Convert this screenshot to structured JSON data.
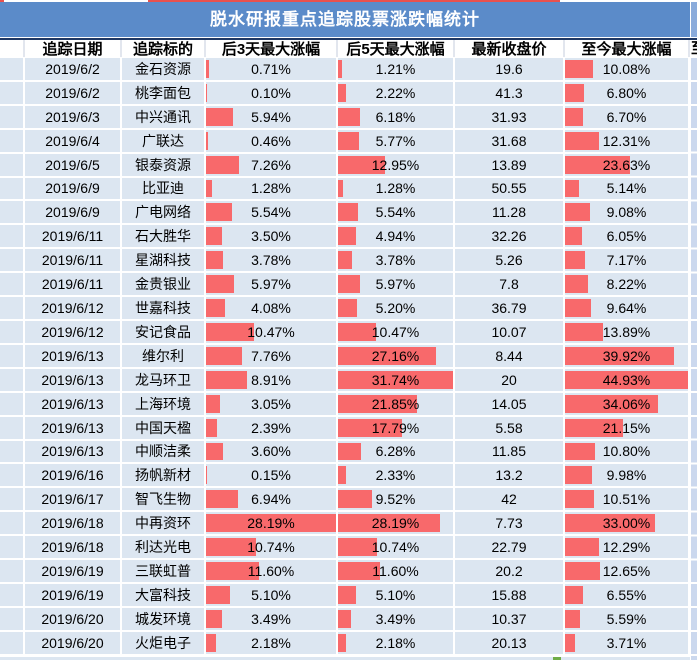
{
  "table": {
    "title": "脱水研报重点追踪股票涨跌幅统计",
    "columns": [
      "追踪日期",
      "追踪标的",
      "后3天最大涨幅",
      "后5天最大涨幅",
      "最新收盘价",
      "至今最大涨幅"
    ],
    "partial_next_column_char": "至",
    "rows": [
      {
        "date": "2019/6/2",
        "name": "金石资源",
        "d3": "0.71%",
        "d5": "1.21%",
        "close": "19.6",
        "total": "10.08%"
      },
      {
        "date": "2019/6/2",
        "name": "桃李面包",
        "d3": "0.10%",
        "d5": "2.22%",
        "close": "41.3",
        "total": "6.80%"
      },
      {
        "date": "2019/6/3",
        "name": "中兴通讯",
        "d3": "5.94%",
        "d5": "6.18%",
        "close": "31.93",
        "total": "6.70%"
      },
      {
        "date": "2019/6/4",
        "name": "广联达",
        "d3": "0.46%",
        "d5": "5.77%",
        "close": "31.68",
        "total": "12.31%"
      },
      {
        "date": "2019/6/5",
        "name": "银泰资源",
        "d3": "7.26%",
        "d5": "12.95%",
        "close": "13.89",
        "total": "23.63%"
      },
      {
        "date": "2019/6/9",
        "name": "比亚迪",
        "d3": "1.28%",
        "d5": "1.28%",
        "close": "50.55",
        "total": "5.14%"
      },
      {
        "date": "2019/6/9",
        "name": "广电网络",
        "d3": "5.54%",
        "d5": "5.54%",
        "close": "11.28",
        "total": "9.08%"
      },
      {
        "date": "2019/6/11",
        "name": "石大胜华",
        "d3": "3.50%",
        "d5": "4.94%",
        "close": "32.26",
        "total": "6.05%"
      },
      {
        "date": "2019/6/11",
        "name": "星湖科技",
        "d3": "3.78%",
        "d5": "3.78%",
        "close": "5.26",
        "total": "7.17%"
      },
      {
        "date": "2019/6/11",
        "name": "金贵银业",
        "d3": "5.97%",
        "d5": "5.97%",
        "close": "7.8",
        "total": "8.22%"
      },
      {
        "date": "2019/6/12",
        "name": "世嘉科技",
        "d3": "4.08%",
        "d5": "5.20%",
        "close": "36.79",
        "total": "9.64%"
      },
      {
        "date": "2019/6/12",
        "name": "安记食品",
        "d3": "10.47%",
        "d5": "10.47%",
        "close": "10.07",
        "total": "13.89%"
      },
      {
        "date": "2019/6/13",
        "name": "维尔利",
        "d3": "7.76%",
        "d5": "27.16%",
        "close": "8.44",
        "total": "39.92%"
      },
      {
        "date": "2019/6/13",
        "name": "龙马环卫",
        "d3": "8.91%",
        "d5": "31.74%",
        "close": "20",
        "total": "44.93%"
      },
      {
        "date": "2019/6/13",
        "name": "上海环境",
        "d3": "3.05%",
        "d5": "21.85%",
        "close": "14.05",
        "total": "34.06%"
      },
      {
        "date": "2019/6/13",
        "name": "中国天楹",
        "d3": "2.39%",
        "d5": "17.79%",
        "close": "5.58",
        "total": "21.15%"
      },
      {
        "date": "2019/6/13",
        "name": "中顺洁柔",
        "d3": "3.60%",
        "d5": "6.28%",
        "close": "11.85",
        "total": "10.80%"
      },
      {
        "date": "2019/6/16",
        "name": "扬帆新材",
        "d3": "0.15%",
        "d5": "2.33%",
        "close": "13.2",
        "total": "9.98%"
      },
      {
        "date": "2019/6/17",
        "name": "智飞生物",
        "d3": "6.94%",
        "d5": "9.52%",
        "close": "42",
        "total": "10.51%"
      },
      {
        "date": "2019/6/18",
        "name": "中再资环",
        "d3": "28.19%",
        "d5": "28.19%",
        "close": "7.73",
        "total": "33.00%"
      },
      {
        "date": "2019/6/18",
        "name": "利达光电",
        "d3": "10.74%",
        "d5": "10.74%",
        "close": "22.79",
        "total": "12.29%"
      },
      {
        "date": "2019/6/19",
        "name": "三联虹普",
        "d3": "11.60%",
        "d5": "11.60%",
        "close": "20.2",
        "total": "12.65%"
      },
      {
        "date": "2019/6/19",
        "name": "大富科技",
        "d3": "5.10%",
        "d5": "5.10%",
        "close": "15.88",
        "total": "6.55%"
      },
      {
        "date": "2019/6/20",
        "name": "城发环境",
        "d3": "3.49%",
        "d5": "3.49%",
        "close": "10.37",
        "total": "5.59%"
      },
      {
        "date": "2019/6/20",
        "name": "火炬电子",
        "d3": "2.18%",
        "d5": "2.18%",
        "close": "20.13",
        "total": "3.71%"
      }
    ]
  },
  "colors": {
    "title_bar": "#5B8BC9",
    "title_sliver": "#8AABDB",
    "header_top_border": "#1F3864",
    "row_background": "#DCE6F1",
    "data_bar_red": "#F8696B",
    "right_partial_column": "#CBD8EE",
    "top_strip_red": "#E9514E",
    "green_marker": "#70AD47"
  }
}
